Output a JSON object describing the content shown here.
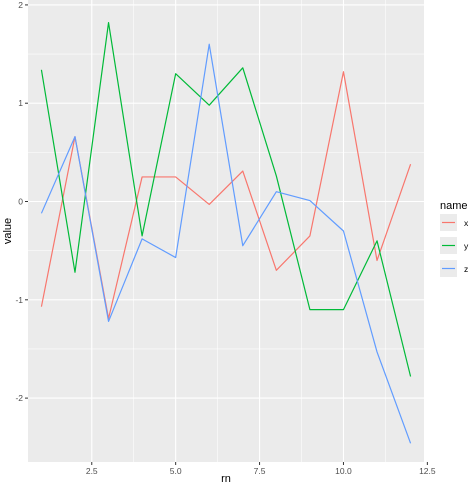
{
  "chart_data": {
    "type": "line",
    "xlabel": "rn",
    "ylabel": "value",
    "xlim": [
      0.6,
      12.4
    ],
    "ylim": [
      -2.65,
      2.05
    ],
    "x_ticks": [
      2.5,
      5.0,
      7.5,
      10.0,
      12.5
    ],
    "x_tick_labels": [
      "2.5",
      "5.0",
      "7.5",
      "10.0",
      "12.5"
    ],
    "y_ticks": [
      -2,
      -1,
      0,
      1,
      2
    ],
    "y_tick_labels": [
      "-2",
      "-1",
      "0",
      "1",
      "2"
    ],
    "grid": true,
    "legend": {
      "title": "name",
      "position": "right"
    },
    "x": [
      1,
      2,
      3,
      4,
      5,
      6,
      7,
      8,
      9,
      10,
      11,
      12
    ],
    "series": [
      {
        "name": "x",
        "color": "#F8766D",
        "values": [
          -1.07,
          0.66,
          -1.19,
          0.25,
          0.25,
          -0.03,
          0.31,
          -0.7,
          -0.35,
          1.32,
          -0.6,
          0.38
        ]
      },
      {
        "name": "y",
        "color": "#00BA38",
        "values": [
          1.34,
          -0.72,
          1.82,
          -0.35,
          1.3,
          0.98,
          1.36,
          0.26,
          -1.1,
          -1.1,
          -0.4,
          -1.78
        ]
      },
      {
        "name": "z",
        "color": "#619CFF",
        "values": [
          -0.12,
          0.66,
          -1.22,
          -0.38,
          -0.57,
          1.6,
          -0.45,
          0.1,
          0.01,
          -0.3,
          -1.53,
          -2.46
        ]
      }
    ]
  }
}
